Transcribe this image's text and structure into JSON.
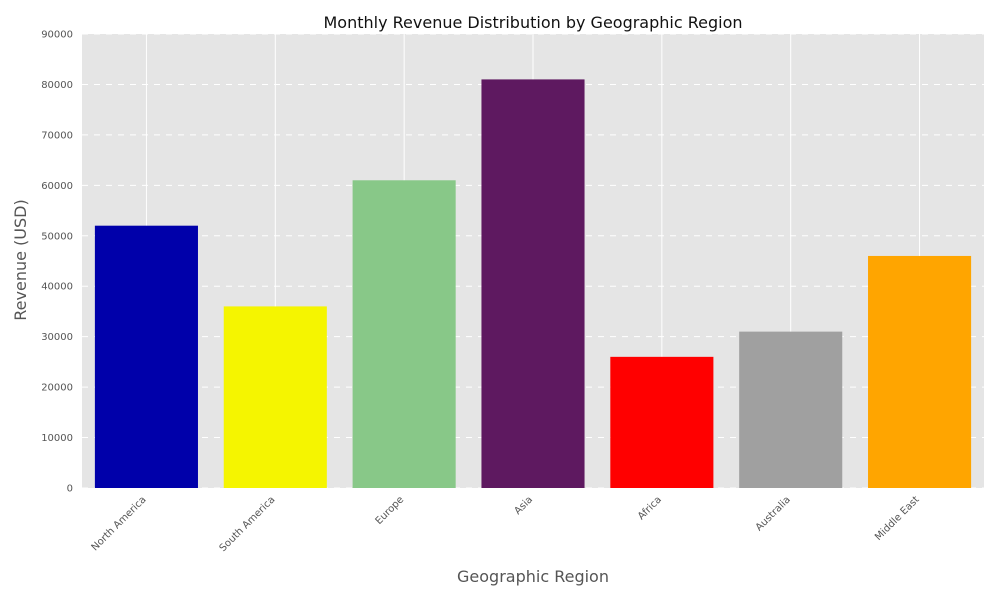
{
  "chart_data": {
    "type": "bar",
    "title": "Monthly Revenue Distribution by Geographic Region",
    "xlabel": "Geographic Region",
    "ylabel": "Revenue (USD)",
    "categories": [
      "North America",
      "South America",
      "Europe",
      "Asia",
      "Africa",
      "Australia",
      "Middle East"
    ],
    "values": [
      52000,
      36000,
      61000,
      81000,
      26000,
      31000,
      46000
    ],
    "colors": [
      "#0000aa",
      "#f5f500",
      "#88c888",
      "#5e1960",
      "#ff0000",
      "#a0a0a0",
      "#ffa500"
    ],
    "ylim": [
      0,
      90000
    ],
    "yticks": [
      {
        "value": 0,
        "label": "0"
      },
      {
        "value": 10000,
        "label": "10000"
      },
      {
        "value": 20000,
        "label": "20000"
      },
      {
        "value": 30000,
        "label": "30000"
      },
      {
        "value": 40000,
        "label": "40000"
      },
      {
        "value": 50000,
        "label": "50000"
      },
      {
        "value": 60000,
        "label": "60000"
      },
      {
        "value": 70000,
        "label": "70000"
      },
      {
        "value": 80000,
        "label": "80000"
      },
      {
        "value": 90000,
        "label": "90000"
      }
    ],
    "grid": true,
    "plot_background": "#e5e5e5"
  }
}
